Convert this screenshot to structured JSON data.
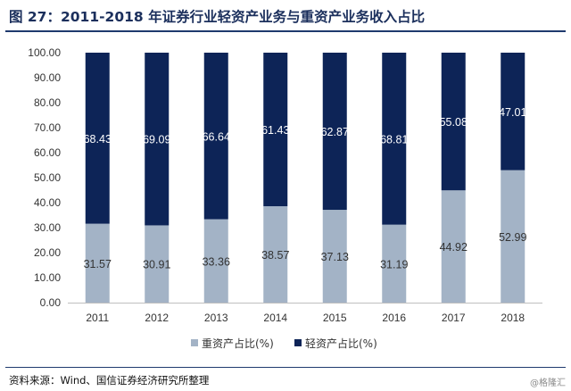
{
  "header": {
    "title": "图 27：2011-2018 年证券行业轻资产业务与重资产业务收入占比"
  },
  "chart_data": {
    "type": "bar",
    "stacked": true,
    "categories": [
      "2011",
      "2012",
      "2013",
      "2014",
      "2015",
      "2016",
      "2017",
      "2018"
    ],
    "series": [
      {
        "name": "重资产占比(%)",
        "color": "#a3b3c6",
        "values": [
          31.57,
          30.91,
          33.36,
          38.57,
          37.13,
          31.19,
          44.92,
          52.99
        ],
        "labels": [
          "31.57",
          "30.91",
          "33.36",
          "38.57",
          "37.13",
          "31.19",
          "44.92",
          "52.99"
        ]
      },
      {
        "name": "轻资产占比(%)",
        "color": "#0d2457",
        "values": [
          68.43,
          69.09,
          66.64,
          61.43,
          62.87,
          68.81,
          55.08,
          47.01
        ],
        "labels": [
          "68.43",
          "69.09",
          "66.64",
          "61.43",
          "62.87",
          "68.81",
          "55.08",
          "47.01"
        ]
      }
    ],
    "yticks": [
      "0.00",
      "10.00",
      "20.00",
      "30.00",
      "40.00",
      "50.00",
      "60.00",
      "70.00",
      "80.00",
      "90.00",
      "100.00"
    ],
    "ylim": [
      0,
      100
    ],
    "grid": false,
    "legend": "bottom"
  },
  "footer": {
    "source": "资料来源：Wind、国信证券经济研究所整理",
    "watermark": "@格隆汇"
  }
}
